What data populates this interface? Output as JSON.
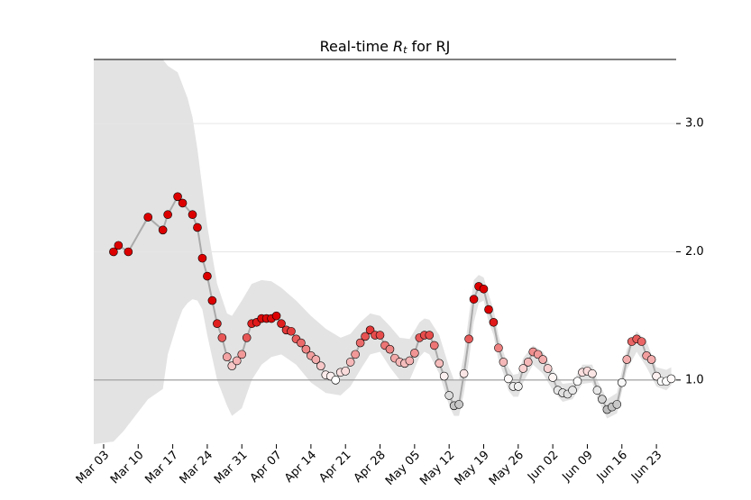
{
  "chart_data": {
    "type": "line",
    "title": [
      "Real-time",
      "R",
      "t",
      "for RJ"
    ],
    "x": [
      "Mar 05",
      "Mar 06",
      "Mar 08",
      "Mar 12",
      "Mar 15",
      "Mar 16",
      "Mar 18",
      "Mar 19",
      "Mar 21",
      "Mar 22",
      "Mar 23",
      "Mar 24",
      "Mar 25",
      "Mar 26",
      "Mar 27",
      "Mar 28",
      "Mar 29",
      "Mar 30",
      "Mar 31",
      "Apr 01",
      "Apr 02",
      "Apr 03",
      "Apr 04",
      "Apr 05",
      "Apr 06",
      "Apr 07",
      "Apr 08",
      "Apr 09",
      "Apr 10",
      "Apr 11",
      "Apr 12",
      "Apr 13",
      "Apr 14",
      "Apr 15",
      "Apr 16",
      "Apr 17",
      "Apr 18",
      "Apr 19",
      "Apr 20",
      "Apr 21",
      "Apr 22",
      "Apr 23",
      "Apr 24",
      "Apr 25",
      "Apr 26",
      "Apr 27",
      "Apr 28",
      "Apr 29",
      "Apr 30",
      "May 01",
      "May 02",
      "May 03",
      "May 04",
      "May 05",
      "May 06",
      "May 07",
      "May 08",
      "May 09",
      "May 10",
      "May 11",
      "May 12",
      "May 13",
      "May 14",
      "May 15",
      "May 16",
      "May 17",
      "May 18",
      "May 19",
      "May 20",
      "May 21",
      "May 22",
      "May 23",
      "May 24",
      "May 25",
      "May 26",
      "May 27",
      "May 28",
      "May 29",
      "May 30",
      "May 31",
      "Jun 01",
      "Jun 02",
      "Jun 03",
      "Jun 04",
      "Jun 05",
      "Jun 06",
      "Jun 07",
      "Jun 08",
      "Jun 09",
      "Jun 10",
      "Jun 11",
      "Jun 12",
      "Jun 13",
      "Jun 14",
      "Jun 15",
      "Jun 16",
      "Jun 17",
      "Jun 18",
      "Jun 19",
      "Jun 20",
      "Jun 21",
      "Jun 22",
      "Jun 23",
      "Jun 24",
      "Jun 25",
      "Jun 26"
    ],
    "values": [
      2.0,
      2.05,
      2.0,
      2.27,
      2.17,
      2.29,
      2.43,
      2.38,
      2.29,
      2.19,
      1.95,
      1.81,
      1.62,
      1.44,
      1.33,
      1.18,
      1.11,
      1.15,
      1.2,
      1.33,
      1.44,
      1.45,
      1.48,
      1.48,
      1.48,
      1.5,
      1.44,
      1.39,
      1.38,
      1.32,
      1.29,
      1.24,
      1.19,
      1.16,
      1.11,
      1.04,
      1.03,
      1.0,
      1.06,
      1.07,
      1.14,
      1.2,
      1.29,
      1.34,
      1.39,
      1.35,
      1.35,
      1.27,
      1.24,
      1.17,
      1.14,
      1.13,
      1.15,
      1.21,
      1.33,
      1.35,
      1.35,
      1.27,
      1.13,
      1.03,
      0.88,
      0.8,
      0.81,
      1.05,
      1.32,
      1.63,
      1.73,
      1.71,
      1.55,
      1.45,
      1.25,
      1.14,
      1.01,
      0.95,
      0.95,
      1.09,
      1.14,
      1.22,
      1.2,
      1.16,
      1.09,
      1.02,
      0.92,
      0.9,
      0.89,
      0.92,
      0.99,
      1.06,
      1.07,
      1.05,
      0.92,
      0.85,
      0.77,
      0.79,
      0.81,
      0.98,
      1.16,
      1.3,
      1.32,
      1.3,
      1.19,
      1.16,
      1.03,
      0.99,
      0.99,
      1.01
    ],
    "line_color": "#aaaaaa",
    "point_colors": {
      "low": "#6e6e6e",
      "mid": "#ffffff",
      "high": "#dc0000"
    },
    "band": {
      "color": "#e3e3e3",
      "x": [
        "Mar 01",
        "Mar 05",
        "Mar 07",
        "Mar 09",
        "Mar 12",
        "Mar 15",
        "Mar 16",
        "Mar 18",
        "Mar 19",
        "Mar 20",
        "Mar 21",
        "Mar 22",
        "Mar 23",
        "Mar 24",
        "Mar 26",
        "Mar 28",
        "Mar 29",
        "Mar 31",
        "Apr 02",
        "Apr 04",
        "Apr 06",
        "Apr 08",
        "Apr 11",
        "Apr 14",
        "Apr 17",
        "Apr 20",
        "Apr 22",
        "Apr 24",
        "Apr 26",
        "Apr 28",
        "Apr 30",
        "May 02",
        "May 04",
        "May 06",
        "May 07",
        "May 08",
        "May 10",
        "May 12",
        "May 13",
        "May 14",
        "May 15",
        "May 16",
        "May 17",
        "May 18",
        "May 19",
        "May 20",
        "May 21",
        "May 22",
        "May 23",
        "May 24",
        "May 25",
        "May 26",
        "May 27",
        "May 29",
        "May 31",
        "Jun 02",
        "Jun 04",
        "Jun 06",
        "Jun 08",
        "Jun 10",
        "Jun 11",
        "Jun 13",
        "Jun 15",
        "Jun 17",
        "Jun 19",
        "Jun 21",
        "Jun 23",
        "Jun 25",
        "Jun 26"
      ],
      "upper": [
        3.5,
        3.5,
        3.5,
        3.5,
        3.5,
        3.5,
        3.45,
        3.4,
        3.3,
        3.2,
        3.05,
        2.8,
        2.5,
        2.2,
        1.75,
        1.52,
        1.5,
        1.62,
        1.75,
        1.78,
        1.77,
        1.72,
        1.62,
        1.5,
        1.4,
        1.33,
        1.36,
        1.45,
        1.52,
        1.5,
        1.42,
        1.33,
        1.32,
        1.45,
        1.48,
        1.47,
        1.35,
        1.1,
        1.0,
        1.0,
        1.2,
        1.5,
        1.78,
        1.82,
        1.8,
        1.67,
        1.55,
        1.35,
        1.22,
        1.1,
        1.04,
        1.05,
        1.17,
        1.27,
        1.22,
        1.08,
        0.97,
        0.98,
        1.12,
        1.12,
        1.0,
        0.85,
        0.9,
        1.24,
        1.38,
        1.3,
        1.1,
        1.08,
        1.1
      ],
      "lower": [
        0.5,
        0.52,
        0.6,
        0.7,
        0.85,
        0.93,
        1.2,
        1.45,
        1.55,
        1.6,
        1.63,
        1.62,
        1.55,
        1.35,
        1.0,
        0.8,
        0.72,
        0.78,
        1.0,
        1.12,
        1.18,
        1.2,
        1.12,
        0.98,
        0.9,
        0.88,
        0.95,
        1.08,
        1.2,
        1.22,
        1.1,
        1.0,
        1.0,
        1.18,
        1.22,
        1.2,
        1.05,
        0.8,
        0.72,
        0.72,
        0.9,
        1.15,
        1.45,
        1.6,
        1.62,
        1.45,
        1.35,
        1.15,
        1.05,
        0.92,
        0.87,
        0.87,
        0.98,
        1.12,
        1.05,
        0.92,
        0.83,
        0.85,
        0.97,
        0.98,
        0.86,
        0.7,
        0.74,
        1.08,
        1.22,
        1.1,
        0.95,
        0.92,
        0.96
      ]
    },
    "hline": 1,
    "xlim": [
      "Mar 01",
      "Jun 27"
    ],
    "xticks": [
      "Mar 03",
      "Mar 10",
      "Mar 17",
      "Mar 24",
      "Mar 31",
      "Apr 07",
      "Apr 14",
      "Apr 21",
      "Apr 28",
      "May 05",
      "May 12",
      "May 19",
      "May 26",
      "Jun 02",
      "Jun 09",
      "Jun 16",
      "Jun 23"
    ],
    "ylim": [
      0.5,
      3.5
    ],
    "yticks": [
      {
        "value": 1,
        "label": "1.0"
      },
      {
        "value": 2,
        "label": "2.0"
      },
      {
        "value": 3,
        "label": "3.0"
      }
    ],
    "grid": true
  }
}
